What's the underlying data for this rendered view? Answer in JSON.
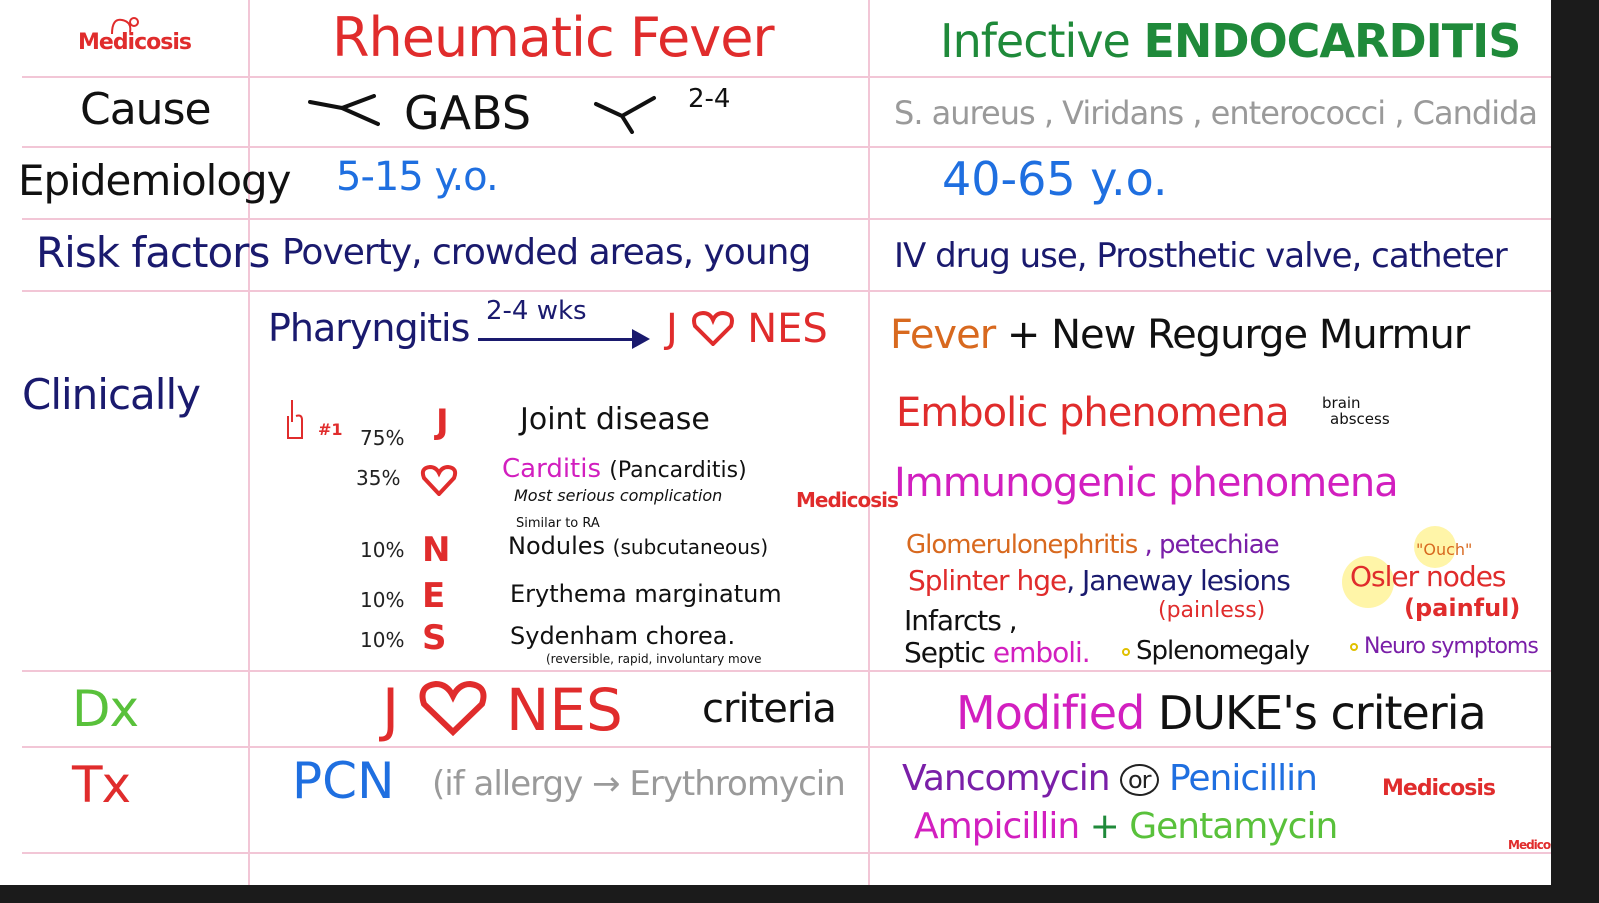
{
  "logo": "Medicosis",
  "headers": {
    "rf": "Rheumatic Fever",
    "ie_part1": "Infective ",
    "ie_part2": "ENDOCARDITIS"
  },
  "rows": {
    "cause": "Cause",
    "epidemiology": "Epidemiology",
    "risk": "Risk factors",
    "clinically": "Clinically",
    "dx": "Dx",
    "tx": "Tx"
  },
  "rf": {
    "cause_main": "GABS",
    "cause_weeks": "2-4",
    "epi": "5-15 y.o.",
    "risk": "Poverty, crowded areas, young",
    "pharyngitis": "Pharyngitis",
    "arrow_label": "2-4 wks",
    "jones_j": "J",
    "jones_nes": "NES",
    "hand_marker": "#1",
    "criteria": [
      {
        "pct": "75%",
        "letter": "J",
        "text": "Joint disease",
        "note": ""
      },
      {
        "pct": "35%",
        "letter": "♥",
        "text": "Carditis",
        "extra": "(Pancarditis)",
        "note": "Most serious complication"
      },
      {
        "pct": "10%",
        "letter": "N",
        "text": "Nodules",
        "extra": "(subcutaneous)",
        "note": "Similar to RA"
      },
      {
        "pct": "10%",
        "letter": "E",
        "text": "Erythema marginatum",
        "note": ""
      },
      {
        "pct": "10%",
        "letter": "S",
        "text": "Sydenham chorea.",
        "note": "(reversible, rapid, involuntary move"
      }
    ],
    "dx_j": "J",
    "dx_nes": "NES",
    "dx_criteria": "criteria",
    "tx_main": "PCN",
    "tx_allergy": "(if allergy",
    "tx_alt": "Erythromycin"
  },
  "ie": {
    "cause": "S. aureus , Viridans , enterococci , Candida",
    "epi": "40-65 y.o.",
    "risk": "IV drug use, Prosthetic valve, catheter",
    "fever": "Fever",
    "plus": "+",
    "new_murmur": "New Regurge Murmur",
    "embolic": "Embolic phenomena",
    "embolic_note_1": "brain",
    "embolic_note_2": "abscess",
    "immuno": "Immunogenic phenomena",
    "glomerulo": "Glomerulonephritis",
    "petechiae": ", petechiae",
    "splinter": "Splinter hge",
    "janeway": ", Janeway lesions",
    "osler": "Osler nodes",
    "ouch": "\"Ouch\"",
    "painless": "(painless)",
    "painful": "(painful)",
    "infarcts": "Infarcts ,",
    "septic": "Septic",
    "emboli": "emboli.",
    "splenomegaly": "Splenomegaly",
    "neuro": "Neuro symptoms",
    "dx_modified": "Modified",
    "dx_duke": "DUKE's",
    "dx_criteria": "criteria",
    "tx_vanco": "Vancomycin",
    "tx_or": "or",
    "tx_pen": "Penicillin",
    "tx_amp": "Ampicillin",
    "tx_plus": "+",
    "tx_gent": "Gentamycin"
  },
  "colors": {
    "red": "#e02c2c",
    "navy": "#1a1a6e",
    "blue": "#1f6fe0",
    "green": "#1f8a3a",
    "magenta": "#d21fbf",
    "purple": "#7a1fa8",
    "orange": "#d8691f",
    "gray": "#9a9a9a",
    "lightgreen": "#59c13b"
  }
}
